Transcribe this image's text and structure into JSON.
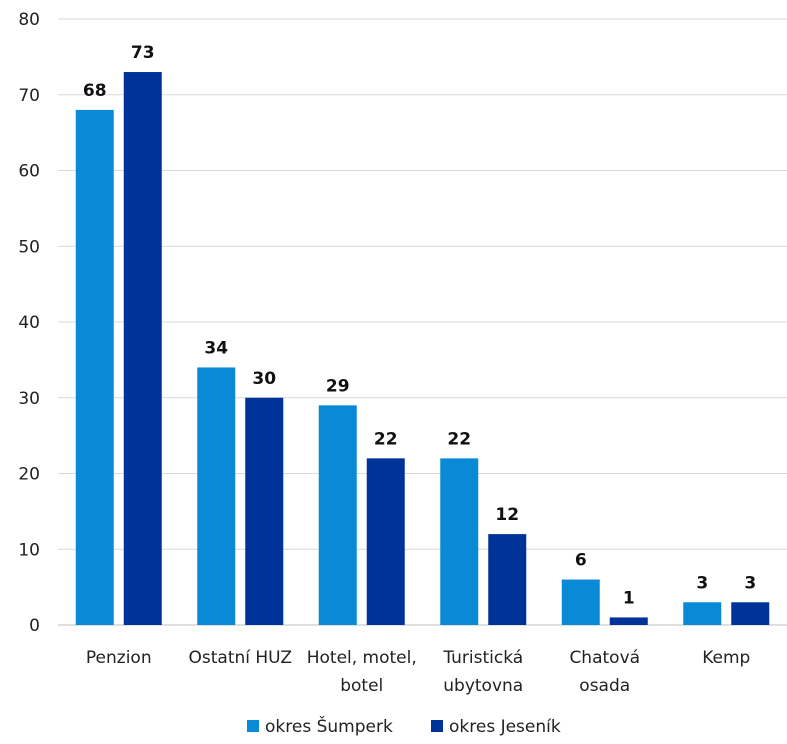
{
  "chart_data": {
    "type": "bar",
    "categories": [
      [
        "Penzion"
      ],
      [
        "Ostatní HUZ"
      ],
      [
        "Hotel, motel,",
        "botel"
      ],
      [
        "Turistická",
        "ubytovna"
      ],
      [
        "Chatová",
        "osada"
      ],
      [
        "Kemp"
      ]
    ],
    "series": [
      {
        "name": "okres Šumperk",
        "color": "#0a8ad6",
        "values": [
          68,
          34,
          29,
          22,
          6,
          3
        ]
      },
      {
        "name": "okres Jeseník",
        "color": "#00339a",
        "values": [
          73,
          30,
          22,
          12,
          1,
          3
        ]
      }
    ],
    "ylim": [
      0,
      80
    ],
    "yticks": [
      0,
      10,
      20,
      30,
      40,
      50,
      60,
      70,
      80
    ],
    "grid": true,
    "legend_position": "bottom",
    "data_labels": true
  }
}
